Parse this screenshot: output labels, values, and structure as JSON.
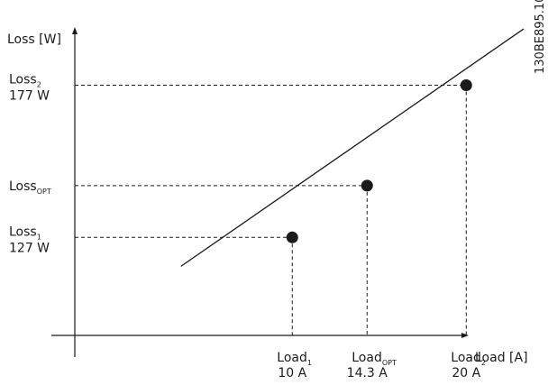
{
  "chart_data": {
    "type": "line",
    "doc_code": "130BE895.10",
    "y_axis_label": "Loss [W]",
    "x_axis_label": "Load [A]",
    "xlim": [
      -6.8,
      24.7
    ],
    "ylim": [
      78.5,
      205
    ],
    "trend_line": {
      "x": [
        3.6,
        23.3
      ],
      "y": [
        117.5,
        195.5
      ]
    },
    "points": [
      {
        "x": 10,
        "y": 127,
        "x_label_main": "Load",
        "x_label_sub": "1",
        "x_label_value": "10 A",
        "y_label_main": "Loss",
        "y_label_sub": "1",
        "y_label_value": "127 W"
      },
      {
        "x": 14.3,
        "y": 144,
        "x_label_main": "Load",
        "x_label_sub": "OPT",
        "x_label_value": "14.3 A",
        "y_label_main": "Loss",
        "y_label_sub": "OPT",
        "y_label_value": ""
      },
      {
        "x": 20,
        "y": 177,
        "x_label_main": "Load",
        "x_label_sub": "2",
        "x_label_value": "20 A",
        "y_label_main": "Loss",
        "y_label_sub": "2",
        "y_label_value": "177 W"
      }
    ]
  }
}
